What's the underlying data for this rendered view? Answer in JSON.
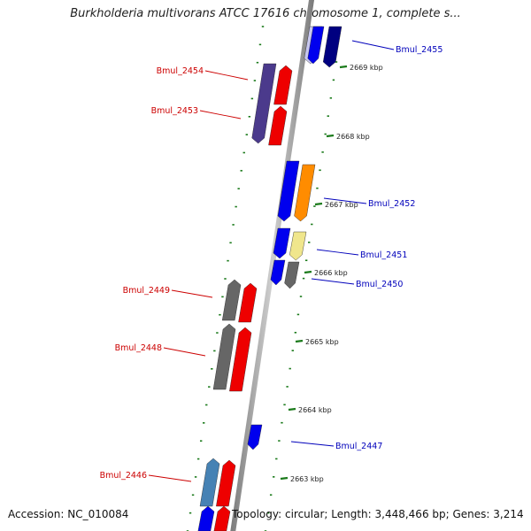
{
  "title": "Burkholderia multivorans ATCC 17616 chromosome 1, complete s...",
  "footer": {
    "accession": "Accession: NC_010084",
    "stats": "Topology: circular; Length: 3,448,466 bp; Genes: 3,214"
  },
  "colors": {
    "backbone": "#9a9a9a",
    "tick_marks": "#1a7a1a",
    "forward_label": "#cc0000",
    "reverse_label": "#0000bb"
  },
  "ticks": [
    "2669 kbp",
    "2668 kbp",
    "2667 kbp",
    "2666 kbp",
    "2665 kbp",
    "2664 kbp",
    "2663 kbp"
  ],
  "genes": [
    {
      "name": "Bmul_2455",
      "strand": "reverse"
    },
    {
      "name": "Bmul_2454",
      "strand": "forward"
    },
    {
      "name": "Bmul_2453",
      "strand": "forward"
    },
    {
      "name": "Bmul_2452",
      "strand": "reverse"
    },
    {
      "name": "Bmul_2451",
      "strand": "reverse"
    },
    {
      "name": "Bmul_2450",
      "strand": "reverse"
    },
    {
      "name": "Bmul_2449",
      "strand": "forward"
    },
    {
      "name": "Bmul_2448",
      "strand": "forward"
    },
    {
      "name": "Bmul_2447",
      "strand": "reverse"
    },
    {
      "name": "Bmul_2446",
      "strand": "forward"
    }
  ],
  "feature_colors": {
    "blue": "#0000ee",
    "navy": "#000080",
    "lavender": "#c8c8f0",
    "red": "#ee0000",
    "purple": "#4b3a8c",
    "orange": "#ff8c00",
    "pale_yellow": "#f0e68c",
    "gray": "#666666",
    "steel_blue": "#4682b4"
  }
}
